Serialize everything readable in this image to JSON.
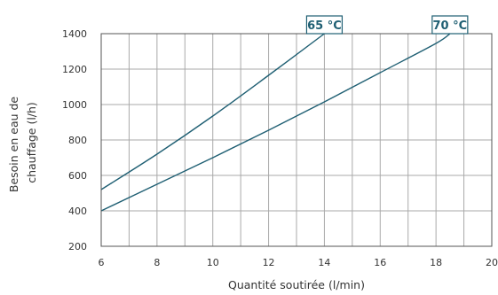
{
  "chart_data": {
    "type": "line",
    "xlabel": "Quantité soutirée (l/min)",
    "ylabel": [
      "Besoin en eau de",
      "chauffage (l/h)"
    ],
    "xlim": [
      6,
      20
    ],
    "ylim": [
      200,
      1400
    ],
    "xticks": [
      "6",
      "8",
      "10",
      "12",
      "14",
      "16",
      "18",
      "20"
    ],
    "yticks": [
      "200",
      "400",
      "600",
      "800",
      "1000",
      "1200",
      "1400"
    ],
    "grid": true,
    "line_color": "#1f5f73",
    "series": [
      {
        "name": "65 °C",
        "x": [
          6,
          8,
          10,
          12,
          14
        ],
        "y": [
          520,
          720,
          935,
          1165,
          1400
        ]
      },
      {
        "name": "70 °C",
        "x": [
          6,
          8,
          10,
          12,
          14,
          16,
          18,
          18.5
        ],
        "y": [
          400,
          550,
          700,
          855,
          1015,
          1180,
          1345,
          1400
        ]
      }
    ]
  }
}
